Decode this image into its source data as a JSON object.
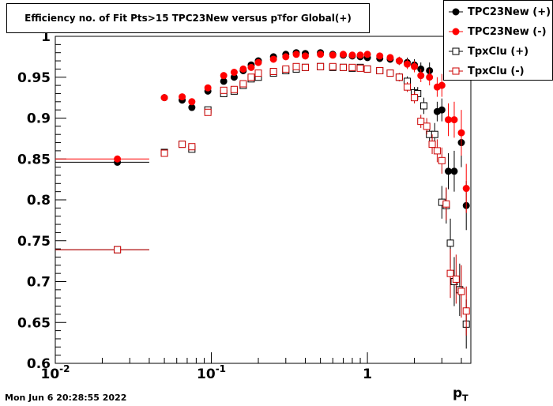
{
  "title_parts": {
    "pre": "Efficiency no. of Fit Pts>15 TPC23New versus p",
    "sub": "T",
    "post": " for Global(+)"
  },
  "timestamp": "Mon Jun  6 20:28:55 2022",
  "chart_data": {
    "type": "scatter",
    "title": "Efficiency no. of Fit Pts>15 TPC23New versus pT for Global(+)",
    "xlabel": "pT",
    "ylabel": "",
    "x_scale": "log",
    "xlim": [
      0.01,
      4.6
    ],
    "ylim": [
      0.6,
      1.0
    ],
    "x_tick_labels": [
      {
        "base": "10",
        "exp": "-2",
        "value": 0.01
      },
      {
        "base": "10",
        "exp": "-1",
        "value": 0.1
      },
      {
        "base": "1",
        "exp": "",
        "value": 1
      }
    ],
    "y_ticks": [
      0.6,
      0.65,
      0.7,
      0.75,
      0.8,
      0.85,
      0.9,
      0.95,
      1.0
    ],
    "y_tick_labels": [
      "0.6",
      "0.65",
      "0.7",
      "0.75",
      "0.8",
      "0.85",
      "0.9",
      "0.95",
      "1"
    ],
    "legend_position": "top-right",
    "series": [
      {
        "name": "TPC23New (+)",
        "color": "#000000",
        "marker": "filled-circle",
        "x": [
          0.025,
          0.05,
          0.065,
          0.075,
          0.095,
          0.12,
          0.14,
          0.16,
          0.18,
          0.2,
          0.25,
          0.3,
          0.35,
          0.4,
          0.5,
          0.6,
          0.7,
          0.8,
          0.9,
          1.0,
          1.2,
          1.4,
          1.6,
          1.8,
          2.0,
          2.2,
          2.5,
          2.8,
          3.0,
          3.3,
          3.6,
          4.0,
          4.3
        ],
        "y": [
          0.846,
          0.925,
          0.922,
          0.913,
          0.933,
          0.945,
          0.95,
          0.958,
          0.965,
          0.97,
          0.975,
          0.978,
          0.98,
          0.979,
          0.98,
          0.978,
          0.977,
          0.976,
          0.975,
          0.974,
          0.973,
          0.972,
          0.97,
          0.968,
          0.965,
          0.96,
          0.958,
          0.908,
          0.91,
          0.835,
          0.835,
          0.87,
          0.793
        ],
        "yerr": [
          0.002,
          0.002,
          0.002,
          0.002,
          0.002,
          0.003,
          0.003,
          0.003,
          0.003,
          0.003,
          0.003,
          0.003,
          0.003,
          0.003,
          0.003,
          0.003,
          0.003,
          0.003,
          0.003,
          0.004,
          0.004,
          0.004,
          0.005,
          0.006,
          0.007,
          0.008,
          0.01,
          0.012,
          0.014,
          0.022,
          0.025,
          0.03,
          0.03
        ],
        "xerr_lo": [
          0.015,
          0,
          0,
          0,
          0,
          0,
          0,
          0,
          0,
          0,
          0,
          0,
          0,
          0,
          0,
          0,
          0,
          0,
          0,
          0,
          0,
          0,
          0,
          0,
          0,
          0,
          0,
          0,
          0,
          0,
          0,
          0,
          0
        ],
        "xerr_hi": [
          0.015,
          0,
          0,
          0,
          0,
          0,
          0,
          0,
          0,
          0,
          0,
          0,
          0,
          0,
          0,
          0,
          0,
          0,
          0,
          0,
          0,
          0,
          0,
          0,
          0,
          0,
          0,
          0,
          0,
          0,
          0,
          0,
          0
        ]
      },
      {
        "name": "TPC23New (-)",
        "color": "#ff0000",
        "marker": "filled-circle",
        "x": [
          0.025,
          0.05,
          0.065,
          0.075,
          0.095,
          0.12,
          0.14,
          0.16,
          0.18,
          0.2,
          0.25,
          0.3,
          0.35,
          0.4,
          0.5,
          0.6,
          0.7,
          0.8,
          0.9,
          1.0,
          1.2,
          1.4,
          1.6,
          1.8,
          2.0,
          2.2,
          2.5,
          2.8,
          3.0,
          3.3,
          3.6,
          4.0,
          4.3
        ],
        "y": [
          0.85,
          0.925,
          0.926,
          0.92,
          0.937,
          0.952,
          0.956,
          0.96,
          0.962,
          0.968,
          0.972,
          0.975,
          0.978,
          0.976,
          0.978,
          0.977,
          0.978,
          0.977,
          0.977,
          0.978,
          0.976,
          0.974,
          0.97,
          0.966,
          0.963,
          0.952,
          0.95,
          0.938,
          0.94,
          0.898,
          0.898,
          0.882,
          0.814
        ],
        "yerr": [
          0.002,
          0.002,
          0.002,
          0.002,
          0.002,
          0.003,
          0.003,
          0.003,
          0.003,
          0.003,
          0.003,
          0.003,
          0.003,
          0.003,
          0.003,
          0.003,
          0.003,
          0.003,
          0.003,
          0.004,
          0.004,
          0.004,
          0.005,
          0.006,
          0.007,
          0.008,
          0.01,
          0.012,
          0.014,
          0.02,
          0.022,
          0.028,
          0.03
        ],
        "xerr_lo": [
          0.015,
          0,
          0,
          0,
          0,
          0,
          0,
          0,
          0,
          0,
          0,
          0,
          0,
          0,
          0,
          0,
          0,
          0,
          0,
          0,
          0,
          0,
          0,
          0,
          0,
          0,
          0,
          0,
          0,
          0,
          0,
          0,
          0
        ],
        "xerr_hi": [
          0.015,
          0,
          0,
          0,
          0,
          0,
          0,
          0,
          0,
          0,
          0,
          0,
          0,
          0,
          0,
          0,
          0,
          0,
          0,
          0,
          0,
          0,
          0,
          0,
          0,
          0,
          0,
          0,
          0,
          0,
          0,
          0,
          0
        ]
      },
      {
        "name": "TpxClu (+)",
        "color": "#000000",
        "marker": "open-square",
        "x": [
          0.025,
          0.05,
          0.065,
          0.075,
          0.095,
          0.12,
          0.14,
          0.16,
          0.18,
          0.2,
          0.25,
          0.3,
          0.35,
          0.4,
          0.5,
          0.6,
          0.7,
          0.8,
          0.9,
          1.0,
          1.2,
          1.4,
          1.6,
          1.8,
          2.0,
          2.1,
          2.3,
          2.5,
          2.7,
          3.0,
          3.2,
          3.4,
          3.6,
          3.9,
          4.3
        ],
        "y": [
          0.739,
          0.858,
          0.868,
          0.862,
          0.91,
          0.93,
          0.933,
          0.94,
          0.948,
          0.95,
          0.955,
          0.958,
          0.96,
          0.962,
          0.963,
          0.962,
          0.962,
          0.961,
          0.962,
          0.96,
          0.958,
          0.955,
          0.95,
          0.945,
          0.931,
          0.93,
          0.915,
          0.88,
          0.88,
          0.797,
          0.793,
          0.747,
          0.7,
          0.69,
          0.648
        ],
        "yerr": [
          0.002,
          0.002,
          0.002,
          0.002,
          0.002,
          0.003,
          0.003,
          0.003,
          0.003,
          0.003,
          0.003,
          0.003,
          0.003,
          0.003,
          0.003,
          0.003,
          0.003,
          0.003,
          0.003,
          0.004,
          0.004,
          0.004,
          0.005,
          0.006,
          0.007,
          0.008,
          0.01,
          0.012,
          0.014,
          0.02,
          0.022,
          0.03,
          0.03,
          0.032,
          0.03
        ],
        "xerr_lo": [
          0.015,
          0,
          0,
          0,
          0,
          0,
          0,
          0,
          0,
          0,
          0,
          0,
          0,
          0,
          0,
          0,
          0,
          0,
          0,
          0,
          0,
          0,
          0,
          0,
          0,
          0,
          0,
          0,
          0,
          0,
          0,
          0,
          0,
          0,
          0
        ],
        "xerr_hi": [
          0.015,
          0,
          0,
          0,
          0,
          0,
          0,
          0,
          0,
          0,
          0,
          0,
          0,
          0,
          0,
          0,
          0,
          0,
          0,
          0,
          0,
          0,
          0,
          0,
          0,
          0,
          0,
          0,
          0,
          0,
          0,
          0,
          0,
          0,
          0
        ]
      },
      {
        "name": "TpxClu (-)",
        "color": "#cc0000",
        "marker": "open-square",
        "x": [
          0.025,
          0.05,
          0.065,
          0.075,
          0.095,
          0.12,
          0.14,
          0.16,
          0.18,
          0.2,
          0.25,
          0.3,
          0.35,
          0.4,
          0.5,
          0.6,
          0.7,
          0.8,
          0.9,
          1.0,
          1.2,
          1.4,
          1.6,
          1.8,
          2.0,
          2.2,
          2.4,
          2.6,
          2.8,
          3.0,
          3.2,
          3.4,
          3.7,
          4.0,
          4.3
        ],
        "y": [
          0.739,
          0.857,
          0.868,
          0.865,
          0.907,
          0.934,
          0.935,
          0.942,
          0.95,
          0.955,
          0.957,
          0.96,
          0.963,
          0.962,
          0.963,
          0.963,
          0.962,
          0.962,
          0.961,
          0.96,
          0.958,
          0.955,
          0.95,
          0.938,
          0.925,
          0.896,
          0.89,
          0.868,
          0.86,
          0.848,
          0.795,
          0.71,
          0.703,
          0.688,
          0.664
        ],
        "yerr": [
          0.002,
          0.002,
          0.002,
          0.002,
          0.002,
          0.003,
          0.003,
          0.003,
          0.003,
          0.003,
          0.003,
          0.003,
          0.003,
          0.003,
          0.003,
          0.003,
          0.003,
          0.003,
          0.003,
          0.004,
          0.004,
          0.004,
          0.005,
          0.006,
          0.007,
          0.008,
          0.01,
          0.012,
          0.014,
          0.016,
          0.02,
          0.03,
          0.03,
          0.032,
          0.03
        ],
        "xerr_lo": [
          0.015,
          0,
          0,
          0,
          0,
          0,
          0,
          0,
          0,
          0,
          0,
          0,
          0,
          0,
          0,
          0,
          0,
          0,
          0,
          0,
          0,
          0,
          0,
          0,
          0,
          0,
          0,
          0,
          0,
          0,
          0,
          0,
          0,
          0,
          0
        ],
        "xerr_hi": [
          0.015,
          0,
          0,
          0,
          0,
          0,
          0,
          0,
          0,
          0,
          0,
          0,
          0,
          0,
          0,
          0,
          0,
          0,
          0,
          0,
          0,
          0,
          0,
          0,
          0,
          0,
          0,
          0,
          0,
          0,
          0,
          0,
          0,
          0,
          0
        ]
      }
    ]
  }
}
